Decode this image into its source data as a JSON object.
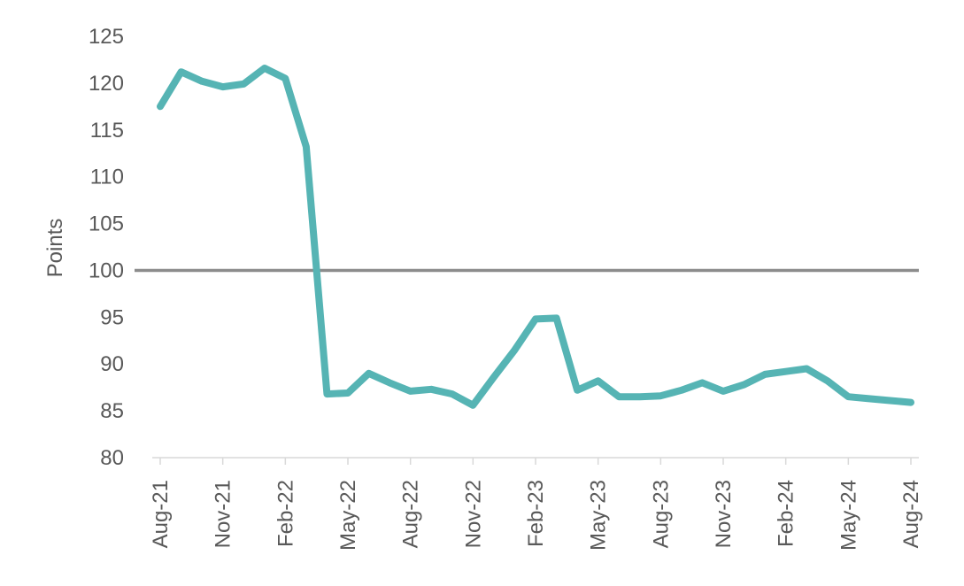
{
  "chart_data": {
    "type": "line",
    "title": "",
    "xlabel": "",
    "ylabel": "Points",
    "ylim": [
      80,
      125
    ],
    "yticks": [
      80,
      85,
      90,
      95,
      100,
      105,
      110,
      115,
      120,
      125
    ],
    "xtick_labels": [
      "Aug-21",
      "Nov-21",
      "Feb-22",
      "May-22",
      "Aug-22",
      "Nov-22",
      "Feb-23",
      "May-23",
      "Aug-23",
      "Nov-23",
      "Feb-24",
      "May-24",
      "Aug-24"
    ],
    "x": [
      "Aug-21",
      "Sep-21",
      "Oct-21",
      "Nov-21",
      "Dec-21",
      "Jan-22",
      "Feb-22",
      "Mar-22",
      "Apr-22",
      "May-22",
      "Jun-22",
      "Jul-22",
      "Aug-22",
      "Sep-22",
      "Oct-22",
      "Nov-22",
      "Dec-22",
      "Jan-23",
      "Feb-23",
      "Mar-23",
      "Apr-23",
      "May-23",
      "Jun-23",
      "Jul-23",
      "Aug-23",
      "Sep-23",
      "Oct-23",
      "Nov-23",
      "Dec-23",
      "Jan-24",
      "Feb-24",
      "Mar-24",
      "Apr-24",
      "May-24",
      "Jun-24",
      "Jul-24",
      "Aug-24"
    ],
    "series": [
      {
        "values": [
          117.5,
          121.2,
          120.2,
          119.6,
          119.9,
          121.6,
          120.5,
          113.2,
          86.8,
          86.9,
          89.0,
          88.0,
          87.1,
          87.3,
          86.8,
          85.6,
          88.6,
          91.5,
          94.8,
          94.9,
          87.2,
          88.2,
          86.5,
          86.5,
          86.6,
          87.2,
          88.0,
          87.1,
          87.8,
          88.9,
          89.2,
          89.5,
          88.2,
          86.5,
          86.3,
          86.1,
          85.9
        ],
        "color": "#56B4B4"
      }
    ],
    "reference_lines": [
      {
        "y": 100,
        "color": "#8C8C8C"
      }
    ],
    "axis_color": "#D9D9D9",
    "grid": false,
    "legend": "none"
  }
}
